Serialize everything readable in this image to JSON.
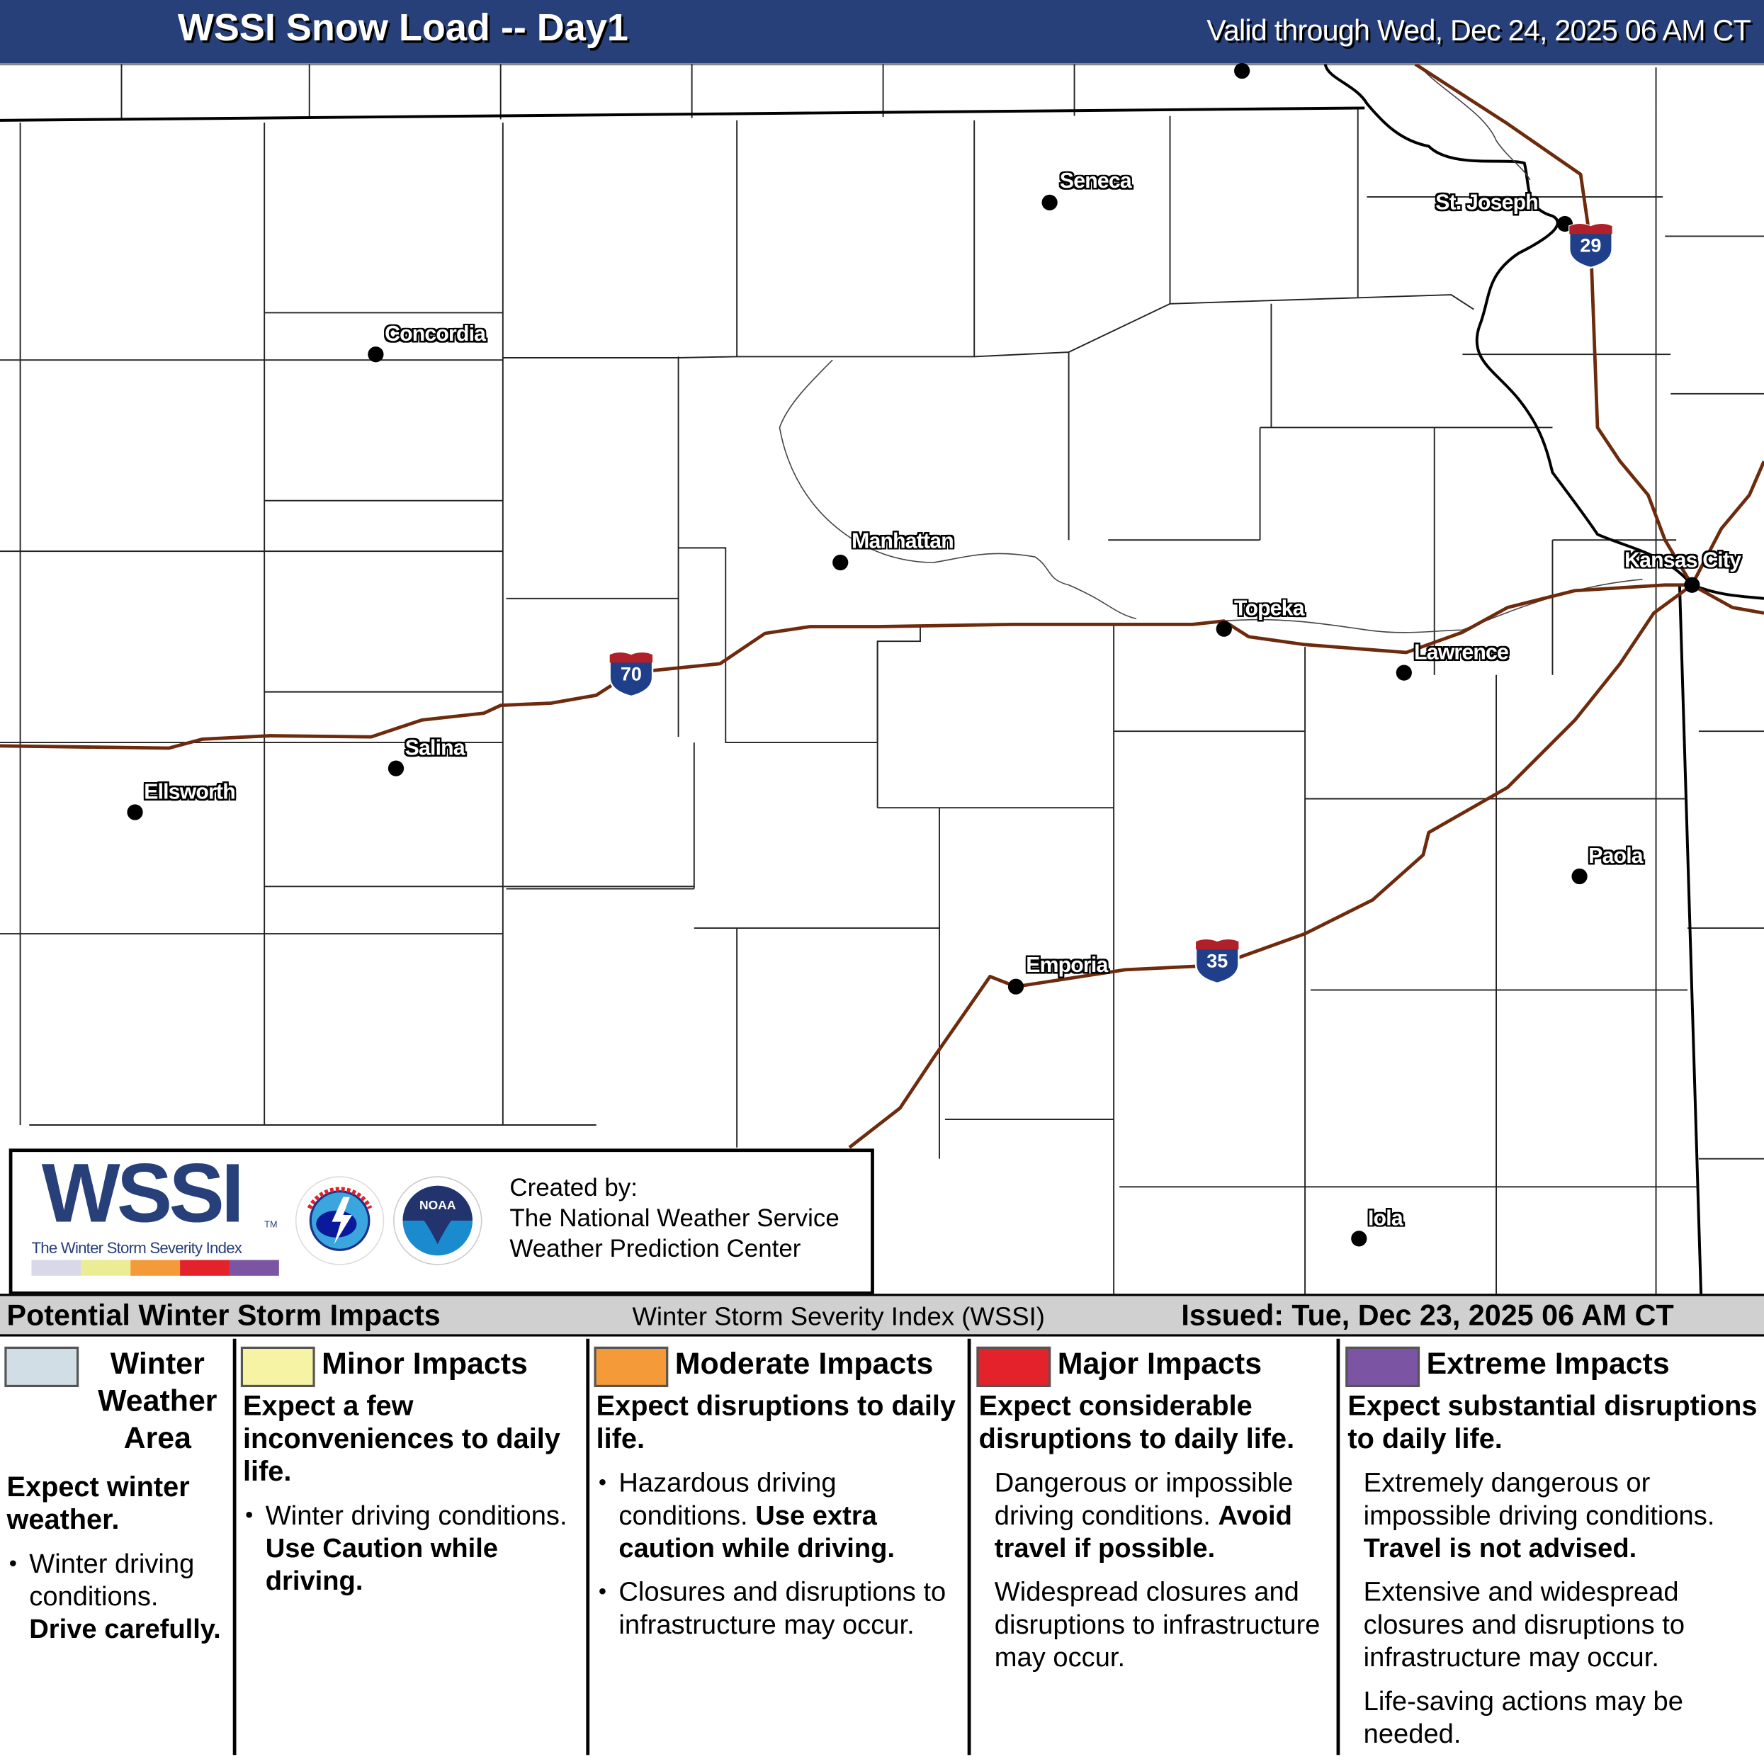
{
  "header": {
    "title": "WSSI Snow Load -- Day1",
    "valid": "Valid through Wed, Dec 24, 2025 06 AM CT"
  },
  "map": {
    "cities": [
      {
        "name": "Seneca"
      },
      {
        "name": "Concordia"
      },
      {
        "name": "Manhattan"
      },
      {
        "name": "Topeka"
      },
      {
        "name": "Kansas City"
      },
      {
        "name": "Lawrence"
      },
      {
        "name": "St. Joseph"
      },
      {
        "name": "Salina"
      },
      {
        "name": "Ellsworth"
      },
      {
        "name": "Paola"
      },
      {
        "name": "Emporia"
      },
      {
        "name": "Iola"
      }
    ],
    "interstates": [
      "70",
      "29",
      "35"
    ],
    "colors": {
      "highway": "#6e2a0c",
      "shield_blue": "#1f3f8a",
      "shield_red": "#b0202a"
    }
  },
  "logo": {
    "wssi": "WSSI",
    "tm": "TM",
    "subtitle": "The Winter Storm Severity Index",
    "nws_text": "NATIONAL WEATHER SERVICE",
    "noaa_text": "NOAA",
    "credit_lines": [
      "Created by:",
      "The National Weather Service",
      "Weather Prediction Center"
    ]
  },
  "legend": {
    "left_title": "Potential Winter Storm Impacts",
    "center_title": "Winter Storm Severity Index (WSSI)",
    "issued": "Issued: Tue, Dec 23, 2025 06 AM CT",
    "columns": [
      {
        "title": "Winter Weather Area",
        "color": "#d1dee6",
        "heading": "Expect winter weather.",
        "items": [
          {
            "type": "bullet",
            "text": "Winter driving conditions.",
            "bold": "Drive carefully."
          }
        ]
      },
      {
        "title": "Minor Impacts",
        "color": "#f7f3a4",
        "heading": "Expect a few inconveniences to daily life.",
        "items": [
          {
            "type": "bullet",
            "text": "Winter driving conditions.",
            "bold": "Use Caution while driving."
          }
        ]
      },
      {
        "title": "Moderate Impacts",
        "color": "#f59a38",
        "heading": "Expect disruptions to daily life.",
        "items": [
          {
            "type": "bullet",
            "text": "Hazardous driving conditions.",
            "bold": "Use extra caution while driving."
          },
          {
            "type": "bullet",
            "text": "Closures and disruptions to infrastructure may occur.",
            "bold": ""
          }
        ]
      },
      {
        "title": "Major Impacts",
        "color": "#e3222b",
        "heading": "Expect considerable disruptions to daily life.",
        "items": [
          {
            "type": "para",
            "text": "Dangerous or impossible driving conditions.",
            "bold": "Avoid travel if possible."
          },
          {
            "type": "para",
            "text": "Widespread closures and disruptions to infrastructure may occur.",
            "bold": ""
          }
        ]
      },
      {
        "title": "Extreme Impacts",
        "color": "#7b54a3",
        "heading": "Expect substantial disruptions to daily life.",
        "items": [
          {
            "type": "para",
            "text": "Extremely dangerous or impossible driving conditions.",
            "bold": "Travel is not advised."
          },
          {
            "type": "para",
            "text": "Extensive and widespread closures and disruptions to infrastructure may occur.",
            "bold": ""
          },
          {
            "type": "para",
            "text": "Life-saving actions may be needed.",
            "bold": ""
          }
        ]
      }
    ]
  }
}
